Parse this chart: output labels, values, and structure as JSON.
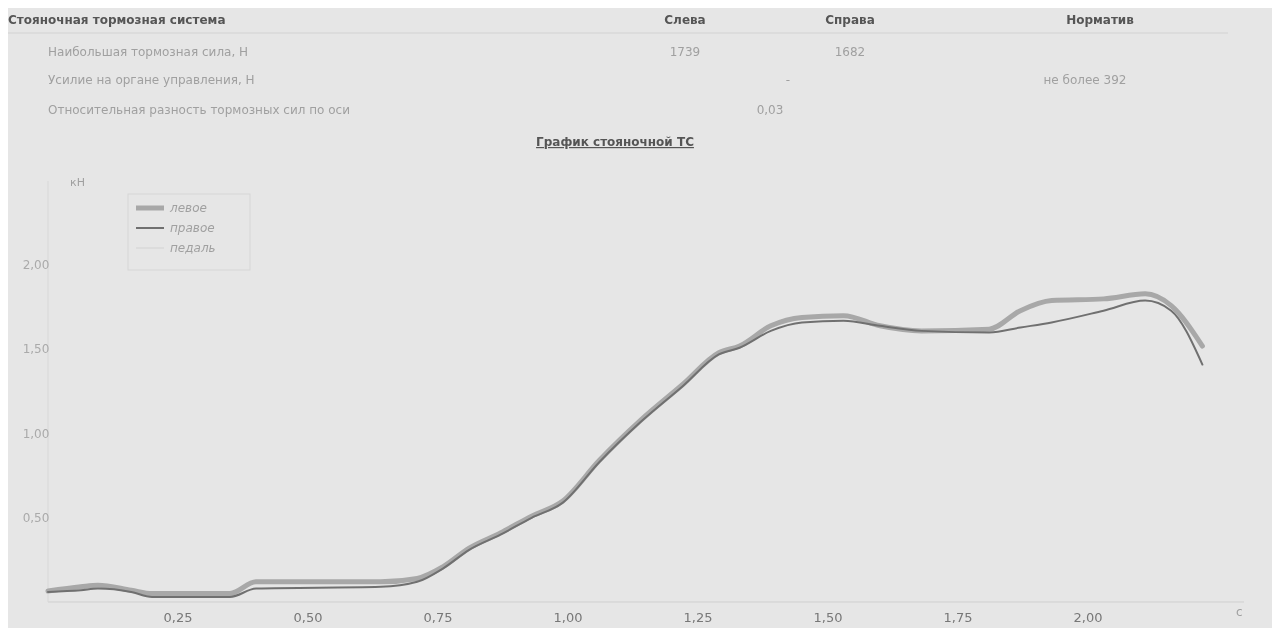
{
  "chart_data": {
    "type": "line",
    "title": "График стояночной ТС",
    "xlabel": "с",
    "ylabel": "кН",
    "annotations": [
      "Стояночная тормозная система",
      "Слева",
      "Справа",
      "Норматив",
      "Наибольшая тормозная сила, Н",
      "1739",
      "1682",
      "Усилие на органе управления, Н",
      "-",
      "не более 392",
      "Относительная разность тормозных сил по оси",
      "0,03"
    ],
    "x": [
      0,
      0.063,
      0.096,
      0.16,
      0.2,
      0.35,
      0.4,
      0.64,
      0.71,
      0.76,
      0.81,
      0.87,
      0.93,
      0.99,
      1.06,
      1.14,
      1.22,
      1.29,
      1.33,
      1.39,
      1.45,
      1.53,
      1.6,
      1.68,
      1.81,
      1.87,
      1.93,
      2.03,
      2.11,
      2.16,
      2.22
    ],
    "series": [
      {
        "name": "левое",
        "color": "#a8a8a8",
        "values": [
          0.065,
          0.09,
          0.1,
          0.07,
          0.05,
          0.05,
          0.12,
          0.12,
          0.14,
          0.21,
          0.32,
          0.41,
          0.51,
          0.6,
          0.84,
          1.08,
          1.29,
          1.48,
          1.52,
          1.64,
          1.69,
          1.7,
          1.64,
          1.61,
          1.62,
          1.73,
          1.79,
          1.8,
          1.83,
          1.76,
          1.52
        ]
      },
      {
        "name": "правое",
        "color": "#707070",
        "values": [
          0.06,
          0.07,
          0.08,
          0.06,
          0.03,
          0.03,
          0.08,
          0.09,
          0.12,
          0.2,
          0.31,
          0.4,
          0.5,
          0.59,
          0.83,
          1.07,
          1.28,
          1.47,
          1.51,
          1.61,
          1.66,
          1.67,
          1.64,
          1.61,
          1.6,
          1.63,
          1.66,
          1.73,
          1.79,
          1.73,
          1.41
        ]
      },
      {
        "name": "педаль",
        "color": "#dcdcdc",
        "values": [
          null,
          null,
          null,
          null,
          null,
          null,
          null,
          null,
          null,
          null,
          null,
          null,
          null,
          null,
          null,
          null,
          null,
          null,
          null,
          null,
          null,
          null,
          null,
          null,
          null,
          null,
          null,
          null,
          null,
          null,
          null
        ]
      }
    ],
    "xlim": [
      0,
      2.3
    ],
    "ylim": [
      0,
      2.5
    ],
    "xticks": [
      {
        "value": 0.25,
        "label": "0,25"
      },
      {
        "value": 0.5,
        "label": "0,50"
      },
      {
        "value": 0.75,
        "label": "0,75"
      },
      {
        "value": 1,
        "label": "1,00"
      },
      {
        "value": 1.25,
        "label": "1,25"
      },
      {
        "value": 1.5,
        "label": "1,50"
      },
      {
        "value": 1.75,
        "label": "1,75"
      },
      {
        "value": 2,
        "label": "2,00"
      }
    ],
    "yticks": [
      {
        "value": 0.5,
        "label": "0,50"
      },
      {
        "value": 1,
        "label": "1,00"
      },
      {
        "value": 1.5,
        "label": "1,50"
      },
      {
        "value": 2,
        "label": "2,00"
      }
    ],
    "legend": "top left",
    "grid": false,
    "marker": "none",
    "line_style": "solid"
  }
}
